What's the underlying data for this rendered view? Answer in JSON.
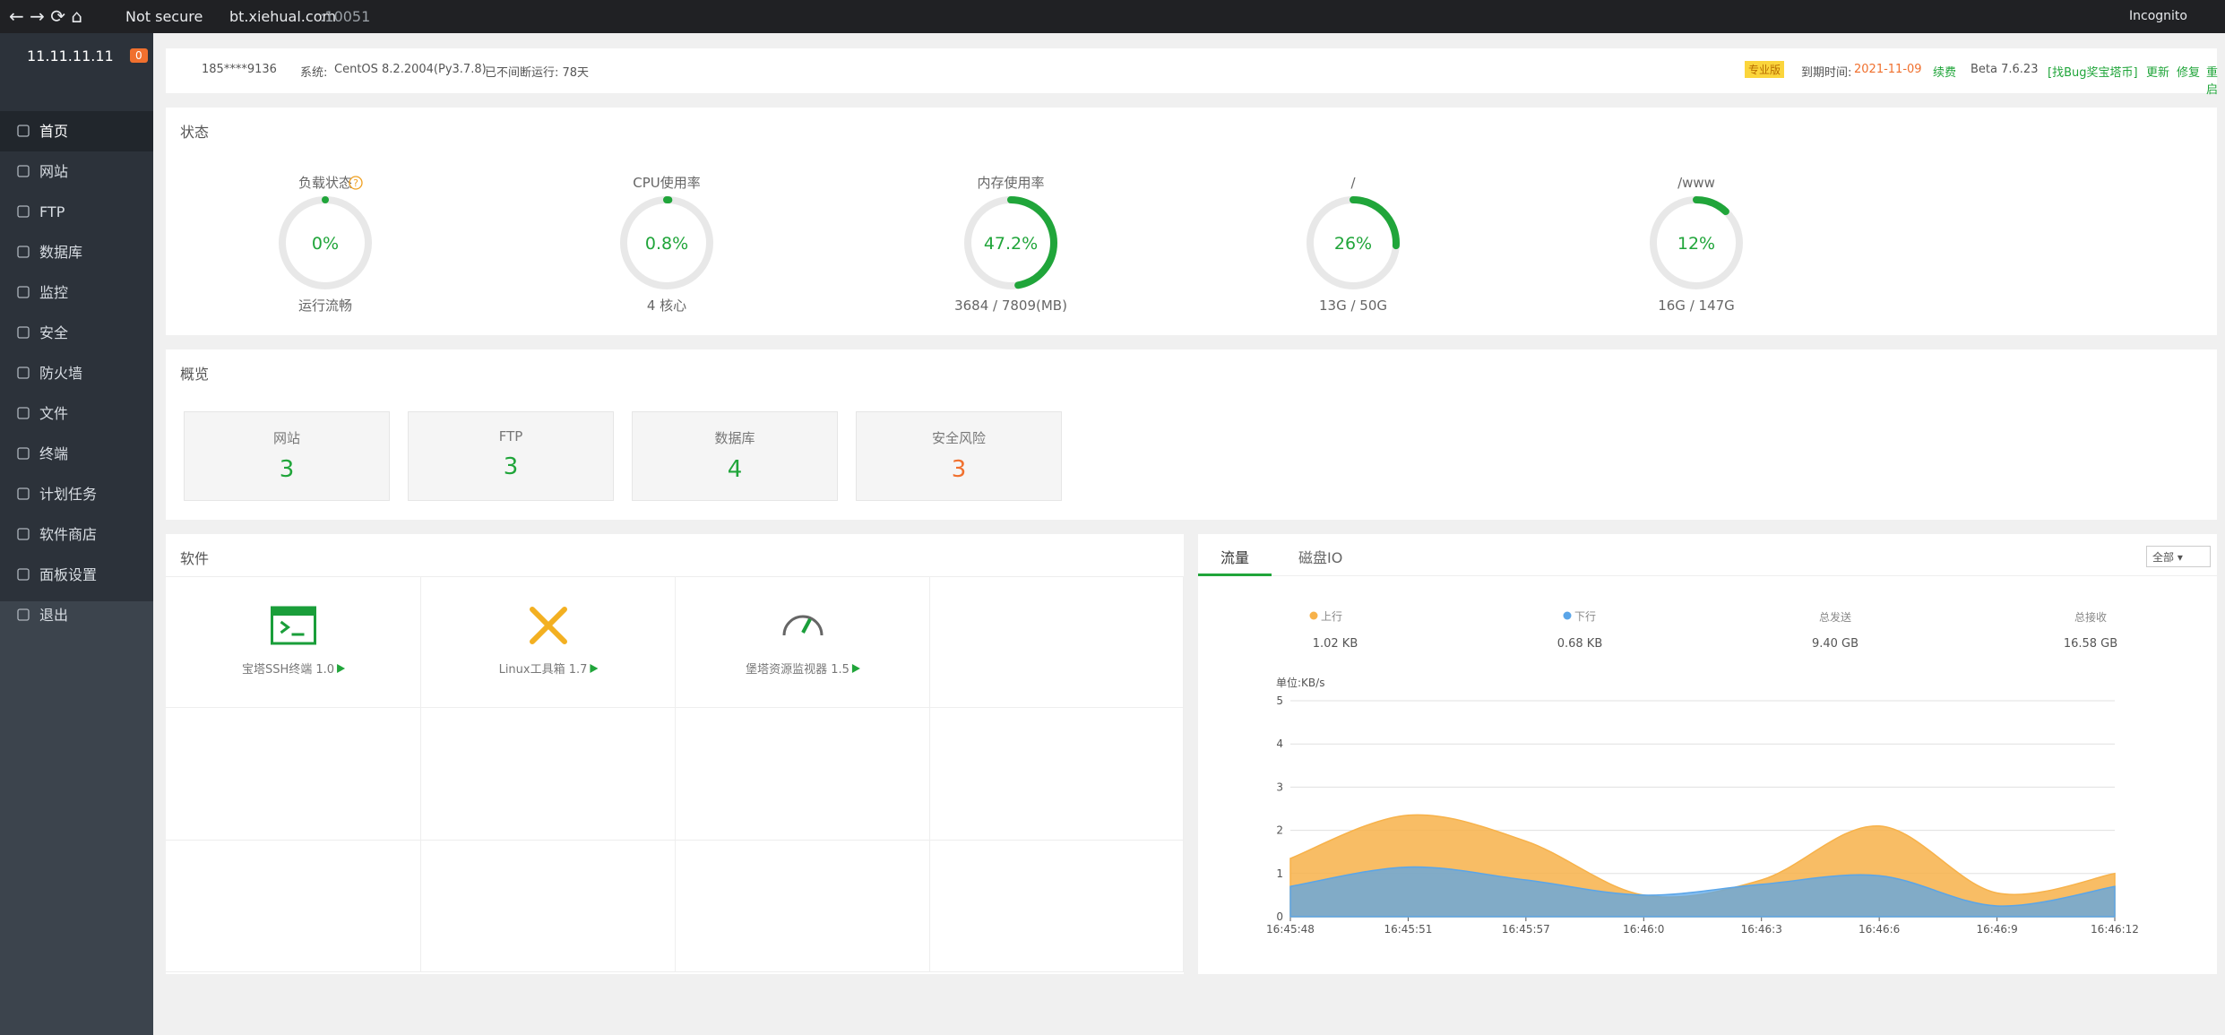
{
  "browser": {
    "security": "Not secure",
    "host": "bt.xiehual.com",
    "port": ":10051",
    "profile": "Incognito"
  },
  "sidebar": {
    "server": "11.11.11.11",
    "badge": "0",
    "menu": [
      "首页",
      "网站",
      "FTP",
      "数据库",
      "监控",
      "安全",
      "防火墙",
      "文件",
      "终端",
      "计划任务",
      "软件商店",
      "面板设置",
      "退出"
    ]
  },
  "header": {
    "user": "185****9136",
    "system_label": "系统:",
    "system": "CentOS 8.2.2004(Py3.7.8)",
    "uptime": "已不间断运行: 78天",
    "edition": "专业版",
    "expire_label": "到期时间:",
    "expire_date": "2021-11-09",
    "renew": "续费",
    "version": "Beta 7.6.23",
    "bug_bounty": "[找Bug奖宝塔币]",
    "update": "更新",
    "repair": "修复",
    "restart": "重启"
  },
  "status": {
    "title": "状态",
    "help_icon": "?",
    "gauges": [
      {
        "name": "负载状态",
        "label": "0%",
        "percent": 0,
        "detail": "运行流畅"
      },
      {
        "name": "CPU使用率",
        "label": "0.8%",
        "percent": 0.8,
        "detail": "4 核心"
      },
      {
        "name": "内存使用率",
        "label": "47.2%",
        "percent": 47.2,
        "detail": "3684 / 7809(MB)"
      },
      {
        "name": "/",
        "label": "26%",
        "percent": 26,
        "detail": "13G / 50G"
      },
      {
        "name": "/www",
        "label": "12%",
        "percent": 12,
        "detail": "16G / 147G"
      }
    ]
  },
  "overview": {
    "title": "概览",
    "items": [
      {
        "name": "网站",
        "count": 3
      },
      {
        "name": "FTP",
        "count": 3
      },
      {
        "name": "数据库",
        "count": 4
      },
      {
        "name": "安全风险",
        "count": 3
      }
    ]
  },
  "software": {
    "title": "软件",
    "items": [
      "宝塔SSH终端 1.0",
      "Linux工具箱 1.7",
      "堡塔资源监视器 1.5"
    ]
  },
  "traffic": {
    "tabs": [
      "流量",
      "磁盘IO"
    ],
    "filter": "全部",
    "stats": {
      "up": "1.02 KB",
      "down": "0.68 KB",
      "sent_label": "总发送",
      "sent": "9.40 GB",
      "recv_label": "总接收",
      "recv": "16.58 GB"
    }
  },
  "chart_data": {
    "type": "area",
    "unit_label": "单位:KB/s",
    "categories": [
      "16:45:48",
      "16:45:51",
      "16:45:57",
      "16:46:0",
      "16:46:3",
      "16:46:6",
      "16:46:9",
      "16:46:12"
    ],
    "series": [
      {
        "name": "上行",
        "color": "#f7b24a",
        "values": [
          1.35,
          2.35,
          1.75,
          0.5,
          0.85,
          2.1,
          0.55,
          1.0
        ]
      },
      {
        "name": "下行",
        "color": "#5aa5e8",
        "values": [
          0.7,
          1.15,
          0.85,
          0.5,
          0.75,
          0.95,
          0.25,
          0.7
        ]
      }
    ],
    "ylim": [
      0,
      5
    ],
    "yticks": [
      0,
      1,
      2,
      3,
      4,
      5
    ],
    "grid": true
  }
}
